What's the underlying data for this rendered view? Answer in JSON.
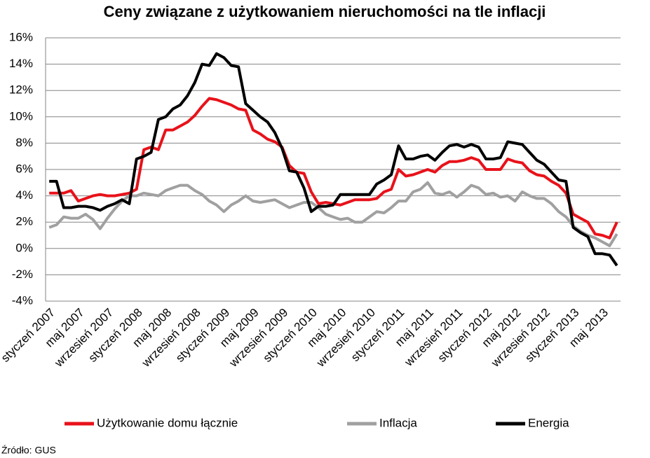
{
  "chart_data": {
    "type": "line",
    "title": "Ceny związane z użytkowaniem nieruchomości na tle inflacji",
    "categories": [
      "styczeń 2007",
      null,
      null,
      null,
      "maj 2007",
      null,
      null,
      null,
      "wrzesień 2007",
      null,
      null,
      null,
      "styczeń 2008",
      null,
      null,
      null,
      "maj 2008",
      null,
      null,
      null,
      "wrzesień 2008",
      null,
      null,
      null,
      "styczeń 2009",
      null,
      null,
      null,
      "maj 2009",
      null,
      null,
      null,
      "wrzesień 2009",
      null,
      null,
      null,
      "styczeń 2010",
      null,
      null,
      null,
      "maj 2010",
      null,
      null,
      null,
      "wrzesień 2010",
      null,
      null,
      null,
      "styczeń 2011",
      null,
      null,
      null,
      "maj 2011",
      null,
      null,
      null,
      "wrzesień 2011",
      null,
      null,
      null,
      "styczeń 2012",
      null,
      null,
      null,
      "maj 2012",
      null,
      null,
      null,
      "wrzesień 2012",
      null,
      null,
      null,
      "styczeń 2013",
      null,
      null,
      null,
      "maj 2013",
      null,
      null
    ],
    "series": [
      {
        "name": "Użytkowanie domu łącznie",
        "color": "#e8121a",
        "values": [
          4.2,
          4.2,
          4.2,
          4.4,
          3.6,
          3.8,
          4.0,
          4.1,
          4.0,
          4.0,
          4.1,
          4.2,
          4.5,
          7.5,
          7.7,
          7.5,
          9.0,
          9.0,
          9.3,
          9.6,
          10.1,
          10.8,
          11.4,
          11.3,
          11.1,
          10.9,
          10.6,
          10.5,
          9.0,
          8.7,
          8.3,
          8.1,
          7.7,
          6.3,
          5.8,
          5.7,
          4.3,
          3.4,
          3.5,
          3.4,
          3.3,
          3.5,
          3.7,
          3.7,
          3.7,
          3.8,
          4.3,
          4.5,
          6.0,
          5.5,
          5.6,
          5.8,
          6.0,
          5.8,
          6.3,
          6.6,
          6.6,
          6.7,
          6.9,
          6.7,
          6.0,
          6.0,
          6.0,
          6.8,
          6.6,
          6.5,
          5.9,
          5.6,
          5.5,
          5.1,
          4.8,
          4.2,
          2.6,
          2.3,
          2.0,
          1.1,
          1.0,
          0.8,
          2.0
        ]
      },
      {
        "name": "Inflacja",
        "color": "#a0a0a0",
        "values": [
          1.6,
          1.8,
          2.4,
          2.3,
          2.3,
          2.6,
          2.2,
          1.5,
          2.3,
          3.0,
          3.6,
          4.0,
          4.0,
          4.2,
          4.1,
          4.0,
          4.4,
          4.6,
          4.8,
          4.8,
          4.4,
          4.1,
          3.6,
          3.3,
          2.8,
          3.3,
          3.6,
          4.0,
          3.6,
          3.5,
          3.6,
          3.7,
          3.4,
          3.1,
          3.3,
          3.5,
          3.5,
          3.1,
          2.6,
          2.4,
          2.2,
          2.3,
          2.0,
          2.0,
          2.4,
          2.8,
          2.7,
          3.1,
          3.6,
          3.6,
          4.3,
          4.5,
          5.0,
          4.2,
          4.1,
          4.3,
          3.9,
          4.3,
          4.8,
          4.6,
          4.1,
          4.2,
          3.9,
          4.0,
          3.6,
          4.3,
          4.0,
          3.8,
          3.8,
          3.4,
          2.8,
          2.4,
          1.7,
          1.3,
          1.0,
          0.8,
          0.5,
          0.2,
          1.1
        ]
      },
      {
        "name": "Energia",
        "color": "#000000",
        "values": [
          5.1,
          5.1,
          3.1,
          3.1,
          3.2,
          3.2,
          3.1,
          2.9,
          3.2,
          3.4,
          3.7,
          3.4,
          6.8,
          7.0,
          7.3,
          9.8,
          10.0,
          10.6,
          10.9,
          11.6,
          12.6,
          14.0,
          13.9,
          14.8,
          14.5,
          13.9,
          13.8,
          11.0,
          10.5,
          10.0,
          9.6,
          8.8,
          7.6,
          5.9,
          5.8,
          4.6,
          2.8,
          3.2,
          3.2,
          3.3,
          4.1,
          4.1,
          4.1,
          4.1,
          4.1,
          4.9,
          5.2,
          5.6,
          7.8,
          6.8,
          6.8,
          7.0,
          7.1,
          6.7,
          7.3,
          7.8,
          7.9,
          7.7,
          7.9,
          7.7,
          6.8,
          6.8,
          6.9,
          8.1,
          8.0,
          7.9,
          7.3,
          6.7,
          6.4,
          5.8,
          5.2,
          5.1,
          1.6,
          1.2,
          0.9,
          -0.4,
          -0.4,
          -0.5,
          -1.3
        ]
      }
    ],
    "ylim": [
      -4,
      16
    ],
    "yticks": [
      {
        "value": -4,
        "label": "-4%"
      },
      {
        "value": -2,
        "label": "-2%"
      },
      {
        "value": 0,
        "label": "0%"
      },
      {
        "value": 2,
        "label": "2%"
      },
      {
        "value": 4,
        "label": "4%"
      },
      {
        "value": 6,
        "label": "6%"
      },
      {
        "value": 8,
        "label": "8%"
      },
      {
        "value": 10,
        "label": "10%"
      },
      {
        "value": 12,
        "label": "12%"
      },
      {
        "value": 14,
        "label": "14%"
      },
      {
        "value": 16,
        "label": "16%"
      }
    ],
    "grid": true,
    "legend": "bottom",
    "source": "Źródło: GUS"
  }
}
